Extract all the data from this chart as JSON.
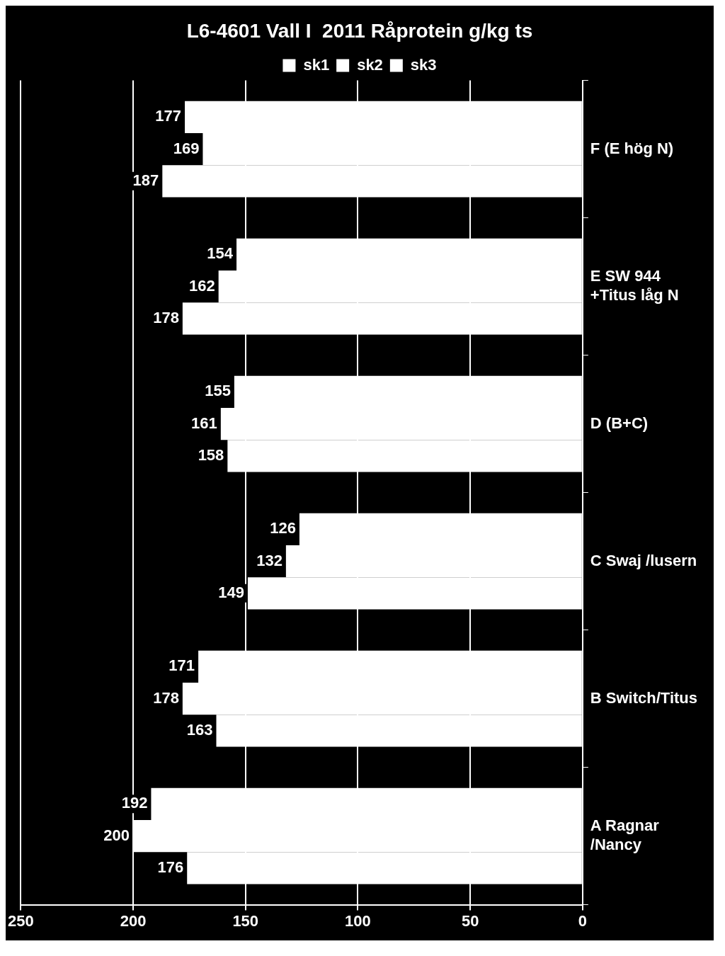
{
  "chart_data": {
    "type": "bar",
    "title": "L6-4601 Vall I  2011 Råprotein g/kg ts",
    "orientation": "horizontal",
    "categories": [
      "F (E hög N)",
      "E SW 944 +Titus låg N",
      "D (B+C)",
      "C Swaj /lusern",
      "B Switch/Titus",
      "A  Ragnar /Nancy"
    ],
    "series": [
      {
        "name": "sk1",
        "color": "#ffffff",
        "values": [
          177,
          154,
          155,
          126,
          171,
          192
        ]
      },
      {
        "name": "sk2",
        "color": "#ffffff",
        "values": [
          169,
          162,
          161,
          132,
          178,
          200
        ]
      },
      {
        "name": "sk3",
        "color": "#ffffff",
        "values": [
          187,
          178,
          158,
          149,
          163,
          176
        ]
      }
    ],
    "xlim": [
      250,
      0
    ],
    "xticks": [
      250,
      200,
      150,
      100,
      50,
      0
    ],
    "grid": "x",
    "legend": "top",
    "data_labels": true
  }
}
